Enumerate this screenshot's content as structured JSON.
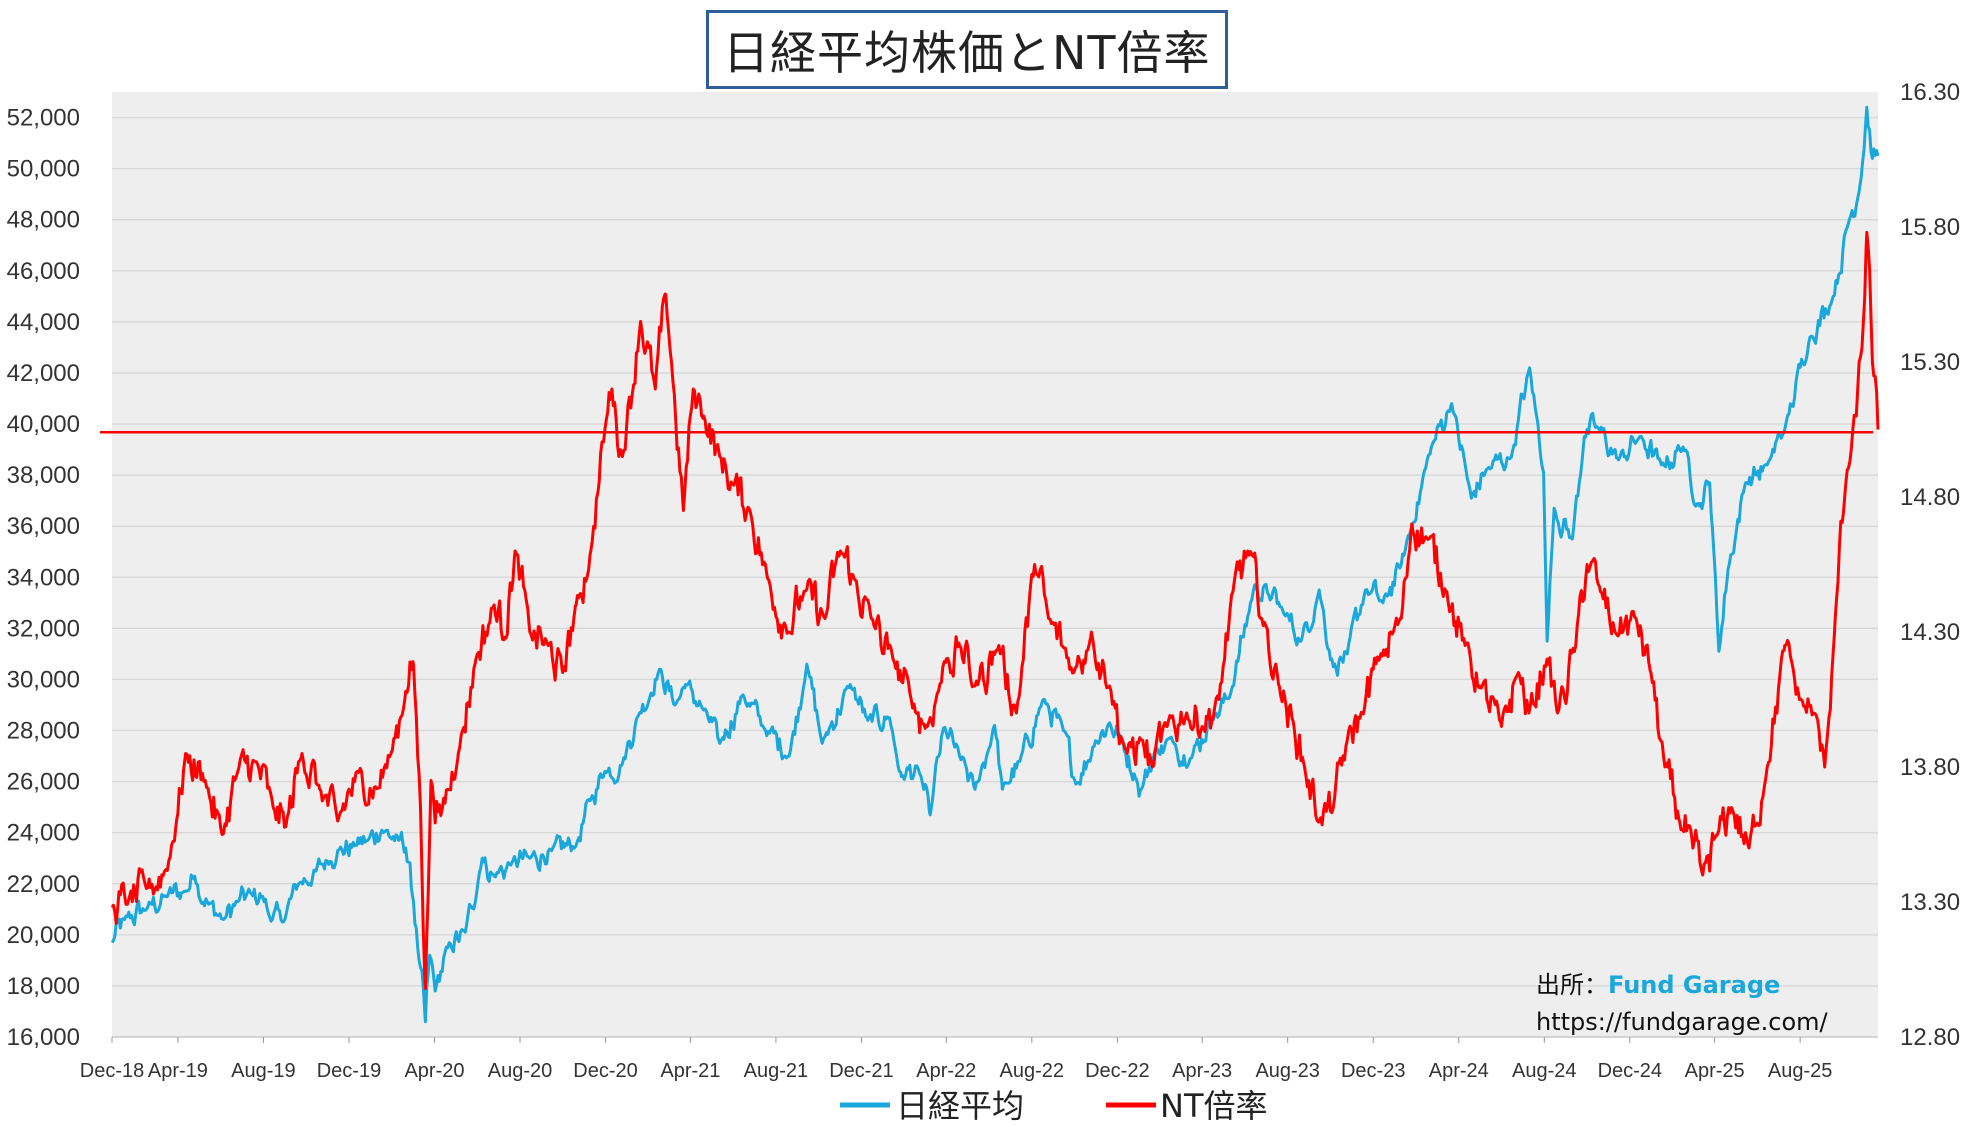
{
  "colors": {
    "nikkei": "#1aa7dc",
    "nt": "#ff0000",
    "plot_bg": "#eeeeee",
    "grid": "#d9d9d9",
    "title_border": "#2f5f9a",
    "brand": "#1aa7dc"
  },
  "source": {
    "label": "出所：",
    "brand": "Fund Garage",
    "url": "https://fundgarage.com/"
  },
  "chart_data": {
    "type": "line",
    "title": "日経平均株価とNT倍率",
    "x_type": "date",
    "xlim": [
      "2018-12-28",
      "2025-11-20"
    ],
    "x_tick_labels": [
      "Dec-18",
      "Apr-19",
      "Aug-19",
      "Dec-19",
      "Apr-20",
      "Aug-20",
      "Dec-20",
      "Apr-21",
      "Aug-21",
      "Dec-21",
      "Apr-22",
      "Aug-22",
      "Dec-22",
      "Apr-23",
      "Aug-23",
      "Dec-23",
      "Apr-24",
      "Aug-24",
      "Dec-24",
      "Apr-25",
      "Aug-25"
    ],
    "x_tick_dates": [
      "2018-12-01",
      "2019-04-01",
      "2019-08-01",
      "2019-12-01",
      "2020-04-01",
      "2020-08-01",
      "2020-12-01",
      "2021-04-01",
      "2021-08-01",
      "2021-12-01",
      "2022-04-01",
      "2022-08-01",
      "2022-12-01",
      "2023-04-01",
      "2023-08-01",
      "2023-12-01",
      "2024-04-01",
      "2024-08-01",
      "2024-12-01",
      "2025-04-01",
      "2025-08-01"
    ],
    "y_left": {
      "ylim": [
        16000,
        53000
      ],
      "tick_labels": [
        "16,000",
        "18,000",
        "20,000",
        "22,000",
        "24,000",
        "26,000",
        "28,000",
        "30,000",
        "32,000",
        "34,000",
        "36,000",
        "38,000",
        "40,000",
        "42,000",
        "44,000",
        "46,000",
        "48,000",
        "50,000",
        "52,000"
      ]
    },
    "y_right": {
      "ylim": [
        12.8,
        16.3
      ],
      "tick_labels": [
        "12.80",
        "13.30",
        "13.80",
        "14.30",
        "14.80",
        "15.30",
        "15.80",
        "16.30"
      ]
    },
    "grid": true,
    "legend_position": "bottom-center",
    "reference_line": {
      "axis": "right",
      "value": 15.04
    },
    "series": [
      {
        "name": "日経平均",
        "axis": "left",
        "points": [
          [
            "2018-12-28",
            19700
          ],
          [
            "2019-01-15",
            20600
          ],
          [
            "2019-02-15",
            21000
          ],
          [
            "2019-03-15",
            21500
          ],
          [
            "2019-04-10",
            21700
          ],
          [
            "2019-04-25",
            22300
          ],
          [
            "2019-05-15",
            21200
          ],
          [
            "2019-06-05",
            20600
          ],
          [
            "2019-06-25",
            21300
          ],
          [
            "2019-07-15",
            21600
          ],
          [
            "2019-07-31",
            21500
          ],
          [
            "2019-08-10",
            20700
          ],
          [
            "2019-08-28",
            20500
          ],
          [
            "2019-09-20",
            22000
          ],
          [
            "2019-10-15",
            22500
          ],
          [
            "2019-10-31",
            22900
          ],
          [
            "2019-11-15",
            23300
          ],
          [
            "2019-12-10",
            23500
          ],
          [
            "2019-12-28",
            23700
          ],
          [
            "2020-01-17",
            24100
          ],
          [
            "2020-02-10",
            23700
          ],
          [
            "2020-02-20",
            23400
          ],
          [
            "2020-03-02",
            21300
          ],
          [
            "2020-03-10",
            19000
          ],
          [
            "2020-03-19",
            16600
          ],
          [
            "2020-03-25",
            19200
          ],
          [
            "2020-04-02",
            17800
          ],
          [
            "2020-04-20",
            19500
          ],
          [
            "2020-05-15",
            20100
          ],
          [
            "2020-06-08",
            23000
          ],
          [
            "2020-06-25",
            22300
          ],
          [
            "2020-07-20",
            22800
          ],
          [
            "2020-08-15",
            23000
          ],
          [
            "2020-09-15",
            23300
          ],
          [
            "2020-10-20",
            23500
          ],
          [
            "2020-11-10",
            25300
          ],
          [
            "2020-11-30",
            26400
          ],
          [
            "2020-12-25",
            26700
          ],
          [
            "2021-01-15",
            28500
          ],
          [
            "2021-02-16",
            30400
          ],
          [
            "2021-03-10",
            29000
          ],
          [
            "2021-03-25",
            29800
          ],
          [
            "2021-04-20",
            28800
          ],
          [
            "2021-05-13",
            27500
          ],
          [
            "2021-06-15",
            29400
          ],
          [
            "2021-07-15",
            28100
          ],
          [
            "2021-08-20",
            27000
          ],
          [
            "2021-09-14",
            30600
          ],
          [
            "2021-10-06",
            27500
          ],
          [
            "2021-11-15",
            29800
          ],
          [
            "2021-12-10",
            28400
          ],
          [
            "2022-01-10",
            28500
          ],
          [
            "2022-01-27",
            26200
          ],
          [
            "2022-02-20",
            26500
          ],
          [
            "2022-03-09",
            24700
          ],
          [
            "2022-03-28",
            28100
          ],
          [
            "2022-04-20",
            27000
          ],
          [
            "2022-05-12",
            25700
          ],
          [
            "2022-06-09",
            28200
          ],
          [
            "2022-06-20",
            25700
          ],
          [
            "2022-07-15",
            26800
          ],
          [
            "2022-08-17",
            29200
          ],
          [
            "2022-09-15",
            28000
          ],
          [
            "2022-10-03",
            25900
          ],
          [
            "2022-10-31",
            27600
          ],
          [
            "2022-11-20",
            28300
          ],
          [
            "2022-12-05",
            27800
          ],
          [
            "2022-12-28",
            26100
          ],
          [
            "2023-01-04",
            25700
          ],
          [
            "2023-01-25",
            27300
          ],
          [
            "2023-02-20",
            27500
          ],
          [
            "2023-03-15",
            26900
          ],
          [
            "2023-04-15",
            28500
          ],
          [
            "2023-05-10",
            29300
          ],
          [
            "2023-06-15",
            33700
          ],
          [
            "2023-07-05",
            33300
          ],
          [
            "2023-07-25",
            32700
          ],
          [
            "2023-08-20",
            31500
          ],
          [
            "2023-09-15",
            33500
          ],
          [
            "2023-10-05",
            30500
          ],
          [
            "2023-10-25",
            31000
          ],
          [
            "2023-11-20",
            33500
          ],
          [
            "2023-12-15",
            33000
          ],
          [
            "2024-01-10",
            34500
          ],
          [
            "2024-01-25",
            36000
          ],
          [
            "2024-02-22",
            39100
          ],
          [
            "2024-03-22",
            40800
          ],
          [
            "2024-04-19",
            37100
          ],
          [
            "2024-05-10",
            38200
          ],
          [
            "2024-06-15",
            38700
          ],
          [
            "2024-07-11",
            42200
          ],
          [
            "2024-07-31",
            38100
          ],
          [
            "2024-08-05",
            31500
          ],
          [
            "2024-08-15",
            36700
          ],
          [
            "2024-09-10",
            35500
          ],
          [
            "2024-09-27",
            39500
          ],
          [
            "2024-10-15",
            39900
          ],
          [
            "2024-11-15",
            38600
          ],
          [
            "2024-12-15",
            39500
          ],
          [
            "2025-01-15",
            38400
          ],
          [
            "2025-02-15",
            39100
          ],
          [
            "2025-03-10",
            36800
          ],
          [
            "2025-03-25",
            37700
          ],
          [
            "2025-04-07",
            31100
          ],
          [
            "2025-04-20",
            34300
          ],
          [
            "2025-05-15",
            37700
          ],
          [
            "2025-06-15",
            38400
          ],
          [
            "2025-07-10",
            39800
          ],
          [
            "2025-08-15",
            43400
          ],
          [
            "2025-09-15",
            44800
          ],
          [
            "2025-10-10",
            48000
          ],
          [
            "2025-10-25",
            49300
          ],
          [
            "2025-11-04",
            52400
          ],
          [
            "2025-11-12",
            50400
          ],
          [
            "2025-11-20",
            50500
          ]
        ]
      },
      {
        "name": "NT倍率",
        "axis": "right",
        "points": [
          [
            "2018-12-28",
            13.28
          ],
          [
            "2019-01-20",
            13.3
          ],
          [
            "2019-02-15",
            13.35
          ],
          [
            "2019-03-15",
            13.42
          ],
          [
            "2019-03-30",
            13.6
          ],
          [
            "2019-04-12",
            13.85
          ],
          [
            "2019-05-10",
            13.75
          ],
          [
            "2019-06-03",
            13.55
          ],
          [
            "2019-06-25",
            13.78
          ],
          [
            "2019-07-20",
            13.82
          ],
          [
            "2019-08-15",
            13.65
          ],
          [
            "2019-09-02",
            13.58
          ],
          [
            "2019-09-25",
            13.85
          ],
          [
            "2019-10-20",
            13.72
          ],
          [
            "2019-11-15",
            13.6
          ],
          [
            "2019-12-15",
            13.78
          ],
          [
            "2020-01-10",
            13.72
          ],
          [
            "2020-01-30",
            13.85
          ],
          [
            "2020-02-20",
            14.08
          ],
          [
            "2020-03-02",
            14.18
          ],
          [
            "2020-03-12",
            13.65
          ],
          [
            "2020-03-19",
            12.98
          ],
          [
            "2020-03-27",
            13.75
          ],
          [
            "2020-04-10",
            13.62
          ],
          [
            "2020-05-05",
            13.85
          ],
          [
            "2020-05-30",
            14.2
          ],
          [
            "2020-06-25",
            14.4
          ],
          [
            "2020-07-10",
            14.28
          ],
          [
            "2020-07-25",
            14.6
          ],
          [
            "2020-08-15",
            14.3
          ],
          [
            "2020-09-10",
            14.25
          ],
          [
            "2020-10-01",
            14.15
          ],
          [
            "2020-10-20",
            14.4
          ],
          [
            "2020-11-10",
            14.6
          ],
          [
            "2020-11-30",
            15.05
          ],
          [
            "2020-12-10",
            15.2
          ],
          [
            "2020-12-25",
            14.95
          ],
          [
            "2021-01-20",
            15.45
          ],
          [
            "2021-02-10",
            15.2
          ],
          [
            "2021-02-25",
            15.55
          ],
          [
            "2021-03-05",
            15.3
          ],
          [
            "2021-03-22",
            14.75
          ],
          [
            "2021-04-05",
            15.2
          ],
          [
            "2021-04-20",
            15.1
          ],
          [
            "2021-05-13",
            14.95
          ],
          [
            "2021-05-31",
            14.85
          ],
          [
            "2021-06-25",
            14.75
          ],
          [
            "2021-07-20",
            14.5
          ],
          [
            "2021-08-20",
            14.3
          ],
          [
            "2021-09-10",
            14.45
          ],
          [
            "2021-10-10",
            14.35
          ],
          [
            "2021-11-01",
            14.6
          ],
          [
            "2021-11-20",
            14.5
          ],
          [
            "2021-12-15",
            14.35
          ],
          [
            "2022-01-15",
            14.2
          ],
          [
            "2022-02-10",
            14.05
          ],
          [
            "2022-03-05",
            13.95
          ],
          [
            "2022-04-01",
            14.2
          ],
          [
            "2022-04-20",
            14.25
          ],
          [
            "2022-05-12",
            14.1
          ],
          [
            "2022-06-15",
            14.25
          ],
          [
            "2022-07-10",
            14.0
          ],
          [
            "2022-08-05",
            14.55
          ],
          [
            "2022-08-25",
            14.35
          ],
          [
            "2022-09-30",
            14.15
          ],
          [
            "2022-10-25",
            14.3
          ],
          [
            "2022-11-20",
            14.1
          ],
          [
            "2022-12-15",
            13.85
          ],
          [
            "2023-01-04",
            13.9
          ],
          [
            "2023-01-20",
            13.8
          ],
          [
            "2023-02-10",
            13.95
          ],
          [
            "2023-03-10",
            14.0
          ],
          [
            "2023-04-01",
            13.95
          ],
          [
            "2023-04-25",
            14.05
          ],
          [
            "2023-05-15",
            14.45
          ],
          [
            "2023-06-05",
            14.6
          ],
          [
            "2023-06-25",
            14.35
          ],
          [
            "2023-07-20",
            14.1
          ],
          [
            "2023-08-10",
            13.95
          ],
          [
            "2023-08-25",
            13.8
          ],
          [
            "2023-09-15",
            13.6
          ],
          [
            "2023-10-05",
            13.65
          ],
          [
            "2023-10-25",
            13.9
          ],
          [
            "2023-11-15",
            14.0
          ],
          [
            "2023-12-10",
            14.2
          ],
          [
            "2024-01-10",
            14.35
          ],
          [
            "2024-01-25",
            14.7
          ],
          [
            "2024-02-15",
            14.65
          ],
          [
            "2024-03-15",
            14.45
          ],
          [
            "2024-04-10",
            14.25
          ],
          [
            "2024-05-01",
            14.1
          ],
          [
            "2024-06-01",
            13.95
          ],
          [
            "2024-06-25",
            14.15
          ],
          [
            "2024-07-10",
            14.0
          ],
          [
            "2024-08-05",
            14.2
          ],
          [
            "2024-08-20",
            14.0
          ],
          [
            "2024-09-15",
            14.25
          ],
          [
            "2024-10-01",
            14.55
          ],
          [
            "2024-10-20",
            14.45
          ],
          [
            "2024-11-10",
            14.3
          ],
          [
            "2024-12-10",
            14.35
          ],
          [
            "2024-12-31",
            14.15
          ],
          [
            "2025-01-20",
            13.8
          ],
          [
            "2025-02-10",
            13.6
          ],
          [
            "2025-03-01",
            13.5
          ],
          [
            "2025-03-15",
            13.4
          ],
          [
            "2025-04-05",
            13.55
          ],
          [
            "2025-04-25",
            13.65
          ],
          [
            "2025-05-20",
            13.5
          ],
          [
            "2025-06-15",
            13.8
          ],
          [
            "2025-07-10",
            14.25
          ],
          [
            "2025-07-31",
            14.05
          ],
          [
            "2025-08-20",
            14.0
          ],
          [
            "2025-09-05",
            13.8
          ],
          [
            "2025-09-20",
            14.35
          ],
          [
            "2025-10-05",
            14.85
          ],
          [
            "2025-10-20",
            15.1
          ],
          [
            "2025-10-28",
            15.35
          ],
          [
            "2025-11-04",
            15.78
          ],
          [
            "2025-11-12",
            15.3
          ],
          [
            "2025-11-20",
            15.05
          ]
        ]
      }
    ]
  }
}
